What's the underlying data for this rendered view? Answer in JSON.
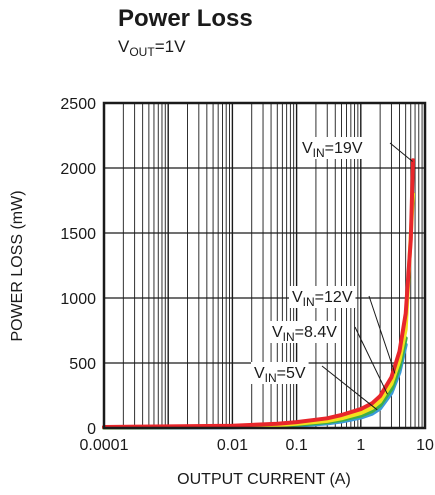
{
  "chart_data": {
    "type": "line",
    "title": "Power Loss",
    "subtitle": {
      "main": "V",
      "sub": "OUT",
      "rest": "=1V"
    },
    "xlabel": "OUTPUT CURRENT (A)",
    "ylabel": "POWER LOSS (mW)",
    "x_scale": "log",
    "xlim": [
      0.0001,
      10
    ],
    "ylim": [
      0,
      2500
    ],
    "grid": true,
    "x_ticks": [
      "0.0001",
      "0.01",
      "0.1",
      "1",
      "10"
    ],
    "x_tick_values": [
      0.0001,
      0.01,
      0.1,
      1,
      10
    ],
    "y_ticks": [
      "0",
      "500",
      "1000",
      "1500",
      "2000",
      "2500"
    ],
    "y_tick_values": [
      0,
      500,
      1000,
      1500,
      2000,
      2500
    ],
    "series": [
      {
        "name": "VIN=5V",
        "label": {
          "main": "V",
          "sub": "IN",
          "rest": "=5V"
        },
        "color": "#3a9ad9",
        "x": [
          0.0001,
          0.001,
          0.01,
          0.05,
          0.1,
          0.3,
          0.5,
          1,
          1.5,
          2,
          3,
          4,
          5
        ],
        "y": [
          3,
          4,
          6,
          12,
          18,
          35,
          50,
          80,
          110,
          150,
          270,
          430,
          640
        ]
      },
      {
        "name": "VIN=8.4V",
        "label": {
          "main": "V",
          "sub": "IN",
          "rest": "=8.4V"
        },
        "color": "#3dae49",
        "x": [
          0.0001,
          0.001,
          0.01,
          0.05,
          0.1,
          0.3,
          0.5,
          1,
          1.5,
          2,
          3,
          4,
          5
        ],
        "y": [
          4,
          6,
          9,
          17,
          25,
          45,
          62,
          95,
          130,
          175,
          300,
          470,
          690
        ]
      },
      {
        "name": "VIN=12V",
        "label": {
          "main": "V",
          "sub": "IN",
          "rest": "=12V"
        },
        "color": "#f2e01e",
        "x": [
          0.0001,
          0.001,
          0.01,
          0.05,
          0.1,
          0.3,
          0.5,
          1,
          1.5,
          2,
          3,
          4,
          5,
          6.5
        ],
        "y": [
          5,
          8,
          12,
          22,
          32,
          55,
          75,
          115,
          155,
          205,
          340,
          520,
          760,
          1800
        ]
      },
      {
        "name": "VIN=19V",
        "label": {
          "main": "V",
          "sub": "IN",
          "rest": "=19V"
        },
        "color": "#e8262b",
        "x": [
          0.0001,
          0.001,
          0.01,
          0.05,
          0.1,
          0.3,
          0.5,
          1,
          1.5,
          2,
          3,
          4,
          5,
          6,
          6.5
        ],
        "y": [
          8,
          12,
          18,
          32,
          45,
          75,
          100,
          145,
          190,
          245,
          390,
          590,
          880,
          1450,
          2060
        ]
      }
    ]
  }
}
